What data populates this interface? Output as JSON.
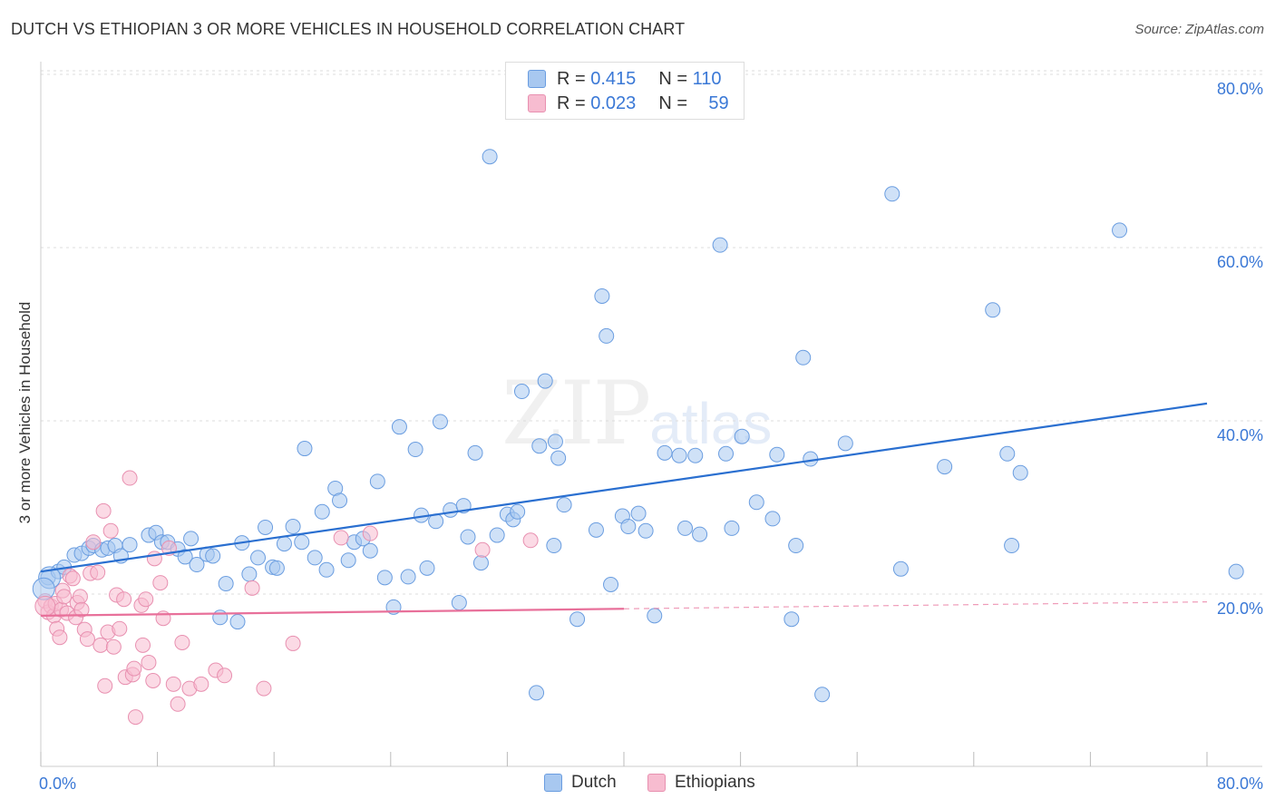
{
  "title": "DUTCH VS ETHIOPIAN 3 OR MORE VEHICLES IN HOUSEHOLD CORRELATION CHART",
  "source": "Source: ZipAtlas.com",
  "watermark_main": "ZIP",
  "watermark_sub": "atlas",
  "legend": {
    "r_label": "R =",
    "n_label": "N =",
    "dutch": {
      "r": "0.415",
      "n": "110"
    },
    "ethiopians": {
      "r": "0.023",
      "n": "59"
    }
  },
  "colors": {
    "dutch_fill": "#a8c8f0",
    "dutch_stroke": "#6a9de0",
    "dutch_line": "#2a6fd0",
    "ethiopian_fill": "#f7bcd0",
    "ethiopian_stroke": "#e890b0",
    "ethiopian_line": "#e8709a",
    "axis_text": "#3a78d6",
    "grid": "#dddddd"
  },
  "chart_data": {
    "type": "scatter",
    "title": "DUTCH VS ETHIOPIAN 3 OR MORE VEHICLES IN HOUSEHOLD CORRELATION CHART",
    "xlabel": "",
    "ylabel": "3 or more Vehicles in Household",
    "xlim": [
      0,
      80
    ],
    "ylim": [
      0,
      80
    ],
    "x_tick_labels": [
      "0.0%",
      "80.0%"
    ],
    "y_tick_labels": [
      "20.0%",
      "40.0%",
      "60.0%",
      "80.0%"
    ],
    "y_ticks": [
      20,
      40,
      60,
      80
    ],
    "series": [
      {
        "name": "Dutch",
        "trend": {
          "x0": 0,
          "y0": 22.6,
          "x1": 80,
          "y1": 42.0,
          "dashed_from": null
        },
        "points": [
          [
            0.5,
            21.9
          ],
          [
            1.2,
            22.6
          ],
          [
            1.6,
            23.1
          ],
          [
            2.3,
            24.5
          ],
          [
            2.8,
            24.7
          ],
          [
            3.3,
            25.3
          ],
          [
            3.6,
            25.6
          ],
          [
            4.2,
            25.1
          ],
          [
            4.6,
            25.3
          ],
          [
            5.1,
            25.6
          ],
          [
            5.5,
            24.4
          ],
          [
            6.1,
            25.7
          ],
          [
            7.4,
            26.8
          ],
          [
            7.9,
            27.1
          ],
          [
            8.3,
            26.0
          ],
          [
            8.7,
            26.0
          ],
          [
            9.4,
            25.2
          ],
          [
            9.9,
            24.3
          ],
          [
            10.3,
            26.4
          ],
          [
            10.7,
            23.4
          ],
          [
            11.4,
            24.6
          ],
          [
            11.8,
            24.4
          ],
          [
            12.3,
            17.3
          ],
          [
            12.7,
            21.2
          ],
          [
            13.5,
            16.8
          ],
          [
            13.8,
            25.9
          ],
          [
            14.3,
            22.3
          ],
          [
            14.9,
            24.2
          ],
          [
            15.4,
            27.7
          ],
          [
            15.9,
            23.1
          ],
          [
            16.2,
            23.0
          ],
          [
            16.7,
            25.8
          ],
          [
            17.3,
            27.8
          ],
          [
            17.9,
            26.0
          ],
          [
            18.1,
            36.8
          ],
          [
            18.8,
            24.2
          ],
          [
            19.3,
            29.5
          ],
          [
            19.6,
            22.8
          ],
          [
            20.2,
            32.2
          ],
          [
            20.5,
            30.8
          ],
          [
            21.1,
            23.9
          ],
          [
            21.5,
            26.0
          ],
          [
            22.1,
            26.4
          ],
          [
            22.6,
            25.0
          ],
          [
            23.1,
            33.0
          ],
          [
            23.6,
            21.9
          ],
          [
            24.2,
            18.5
          ],
          [
            24.6,
            39.3
          ],
          [
            25.2,
            22.0
          ],
          [
            25.7,
            36.7
          ],
          [
            26.1,
            29.1
          ],
          [
            26.5,
            23.0
          ],
          [
            27.1,
            28.4
          ],
          [
            27.4,
            39.9
          ],
          [
            28.1,
            29.7
          ],
          [
            28.7,
            19.0
          ],
          [
            29.0,
            30.2
          ],
          [
            29.3,
            26.6
          ],
          [
            29.8,
            36.3
          ],
          [
            30.2,
            23.6
          ],
          [
            30.8,
            70.5
          ],
          [
            31.3,
            26.8
          ],
          [
            32.0,
            29.2
          ],
          [
            32.4,
            28.6
          ],
          [
            32.7,
            29.5
          ],
          [
            33.0,
            43.4
          ],
          [
            34.0,
            8.6
          ],
          [
            34.2,
            37.1
          ],
          [
            34.6,
            44.6
          ],
          [
            35.2,
            25.6
          ],
          [
            35.3,
            37.6
          ],
          [
            35.5,
            35.7
          ],
          [
            35.9,
            30.3
          ],
          [
            36.8,
            17.1
          ],
          [
            38.1,
            27.4
          ],
          [
            38.5,
            54.4
          ],
          [
            38.8,
            49.8
          ],
          [
            39.1,
            21.1
          ],
          [
            39.9,
            29.0
          ],
          [
            40.3,
            27.8
          ],
          [
            41.0,
            29.3
          ],
          [
            41.5,
            27.3
          ],
          [
            42.1,
            17.5
          ],
          [
            42.8,
            36.3
          ],
          [
            43.8,
            36.0
          ],
          [
            44.2,
            27.6
          ],
          [
            44.9,
            36.0
          ],
          [
            45.2,
            26.9
          ],
          [
            46.6,
            60.3
          ],
          [
            47.0,
            36.2
          ],
          [
            47.4,
            27.6
          ],
          [
            48.1,
            38.2
          ],
          [
            49.1,
            30.6
          ],
          [
            50.2,
            28.7
          ],
          [
            50.5,
            36.1
          ],
          [
            51.5,
            17.1
          ],
          [
            51.8,
            25.6
          ],
          [
            52.3,
            47.3
          ],
          [
            52.8,
            35.6
          ],
          [
            53.6,
            8.4
          ],
          [
            55.2,
            37.4
          ],
          [
            58.4,
            66.2
          ],
          [
            59.0,
            22.9
          ],
          [
            62.0,
            34.7
          ],
          [
            65.3,
            52.8
          ],
          [
            66.3,
            36.2
          ],
          [
            66.6,
            25.6
          ],
          [
            67.2,
            34.0
          ],
          [
            74.0,
            62.0
          ],
          [
            82.0,
            22.6
          ]
        ]
      },
      {
        "name": "Ethiopians",
        "trend": {
          "x0": 0,
          "y0": 17.5,
          "x1": 80,
          "y1": 19.1,
          "dashed_from": 40
        },
        "points": [
          [
            0.3,
            19.2
          ],
          [
            0.5,
            17.9
          ],
          [
            0.7,
            18.6
          ],
          [
            0.9,
            17.5
          ],
          [
            1.0,
            18.9
          ],
          [
            1.1,
            16.0
          ],
          [
            1.3,
            15.0
          ],
          [
            1.4,
            18.2
          ],
          [
            1.5,
            20.4
          ],
          [
            1.6,
            19.7
          ],
          [
            1.8,
            17.8
          ],
          [
            2.0,
            22.1
          ],
          [
            2.2,
            21.8
          ],
          [
            2.4,
            17.3
          ],
          [
            2.5,
            19.0
          ],
          [
            2.7,
            19.7
          ],
          [
            2.8,
            18.2
          ],
          [
            3.0,
            15.9
          ],
          [
            3.2,
            14.8
          ],
          [
            3.4,
            22.4
          ],
          [
            3.6,
            26.0
          ],
          [
            3.9,
            22.5
          ],
          [
            4.1,
            14.1
          ],
          [
            4.3,
            29.6
          ],
          [
            4.4,
            9.4
          ],
          [
            4.6,
            15.6
          ],
          [
            4.8,
            27.3
          ],
          [
            5.0,
            13.9
          ],
          [
            5.2,
            19.9
          ],
          [
            5.4,
            16.0
          ],
          [
            5.7,
            19.4
          ],
          [
            5.8,
            10.4
          ],
          [
            6.1,
            33.4
          ],
          [
            6.3,
            10.7
          ],
          [
            6.4,
            11.4
          ],
          [
            6.5,
            5.8
          ],
          [
            6.9,
            18.7
          ],
          [
            7.0,
            14.1
          ],
          [
            7.2,
            19.4
          ],
          [
            7.4,
            12.1
          ],
          [
            7.7,
            10.0
          ],
          [
            7.8,
            24.1
          ],
          [
            8.2,
            21.3
          ],
          [
            8.4,
            17.2
          ],
          [
            8.8,
            25.3
          ],
          [
            9.1,
            9.6
          ],
          [
            9.4,
            7.3
          ],
          [
            9.7,
            14.4
          ],
          [
            10.2,
            9.1
          ],
          [
            11.0,
            9.6
          ],
          [
            12.0,
            11.2
          ],
          [
            12.6,
            10.6
          ],
          [
            14.5,
            20.7
          ],
          [
            15.3,
            9.1
          ],
          [
            17.3,
            14.3
          ],
          [
            20.6,
            26.5
          ],
          [
            22.6,
            27.0
          ],
          [
            30.3,
            25.1
          ],
          [
            33.6,
            26.2
          ]
        ]
      }
    ]
  },
  "bottom_legend": [
    "Dutch",
    "Ethiopians"
  ]
}
